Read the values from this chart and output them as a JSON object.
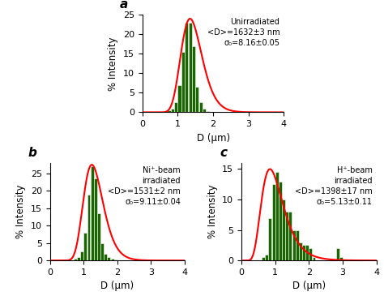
{
  "panel_a": {
    "label": "a",
    "bar_centers": [
      0.75,
      0.85,
      0.95,
      1.05,
      1.15,
      1.25,
      1.35,
      1.45,
      1.55,
      1.65,
      1.75,
      1.85,
      1.95,
      2.05,
      2.15,
      2.25
    ],
    "bar_heights": [
      0.5,
      1.0,
      2.5,
      7.0,
      15.5,
      23.0,
      23.0,
      17.0,
      6.5,
      2.5,
      1.0,
      0.3,
      0.0,
      0.0,
      0.0,
      0.0
    ],
    "ylim": [
      0,
      25
    ],
    "yticks": [
      0,
      5,
      10,
      15,
      20,
      25
    ],
    "xlim": [
      0,
      4
    ],
    "xticks": [
      0,
      1,
      2,
      3,
      4
    ],
    "annotation_line1": "Unirradiated",
    "annotation_line2": "<D>=1632±3 nm",
    "annotation_line3": "σ₀=8.16±0.05",
    "mean_um": 1.45,
    "s_ln": 0.22,
    "peak_height": 24.0,
    "curve_color": "#ff0000",
    "bar_color": "#1a6600",
    "bar_edge_color": "#ffffff"
  },
  "panel_b": {
    "label": "b",
    "bar_centers": [
      0.75,
      0.85,
      0.95,
      1.05,
      1.15,
      1.25,
      1.35,
      1.45,
      1.55,
      1.65,
      1.75,
      1.85,
      1.95,
      2.05,
      2.15,
      2.25,
      2.35,
      2.45
    ],
    "bar_heights": [
      0.5,
      1.0,
      2.5,
      8.0,
      19.0,
      27.0,
      23.5,
      13.5,
      5.0,
      2.0,
      1.0,
      0.5,
      0.2,
      0.0,
      0.0,
      0.0,
      0.0,
      0.0
    ],
    "ylim": [
      0,
      28
    ],
    "yticks": [
      0,
      5,
      10,
      15,
      20,
      25
    ],
    "xlim": [
      0,
      4
    ],
    "xticks": [
      0,
      1,
      2,
      3,
      4
    ],
    "annotation_line1": "Ni⁺-beam",
    "annotation_line2": "irradiated",
    "annotation_line3": "<D>=1531±2 nm",
    "annotation_line4": "σ₀=9.11±0.04",
    "mean_um": 1.35,
    "s_ln": 0.235,
    "peak_height": 27.5,
    "curve_color": "#ff0000",
    "bar_color": "#1a6600",
    "bar_edge_color": "#ffffff"
  },
  "panel_c": {
    "label": "c",
    "bar_centers": [
      0.65,
      0.75,
      0.85,
      0.95,
      1.05,
      1.15,
      1.25,
      1.35,
      1.45,
      1.55,
      1.65,
      1.75,
      1.85,
      1.95,
      2.05,
      2.15,
      2.25,
      2.35,
      2.45,
      2.55,
      2.65,
      2.75,
      2.85,
      2.95,
      3.05,
      3.15,
      3.25,
      3.35
    ],
    "bar_heights": [
      0.5,
      1.0,
      7.0,
      12.5,
      14.5,
      13.0,
      10.0,
      8.0,
      8.0,
      5.0,
      5.0,
      3.0,
      2.5,
      2.5,
      2.0,
      0.5,
      0.0,
      0.0,
      0.0,
      0.0,
      0.0,
      0.0,
      2.0,
      0.5,
      0.0,
      0.0,
      0.0,
      0.0
    ],
    "ylim": [
      0,
      16
    ],
    "yticks": [
      0,
      5,
      10,
      15
    ],
    "xlim": [
      0,
      4
    ],
    "xticks": [
      0,
      1,
      2,
      3,
      4
    ],
    "annotation_line1": "H⁺-beam",
    "annotation_line2": "irradiated",
    "annotation_line3": "<D>=1398±17 nm",
    "annotation_line4": "σ₀=5.13±0.11",
    "mean_um": 1.05,
    "s_ln": 0.38,
    "peak_height": 15.0,
    "curve_color": "#ff0000",
    "bar_color": "#1a6600",
    "bar_edge_color": "#ffffff"
  },
  "xlabel": "D (μm)",
  "ylabel": "% Intensity",
  "bar_width": 0.095,
  "background_color": "#ffffff",
  "figure_size": [
    4.74,
    3.65
  ]
}
